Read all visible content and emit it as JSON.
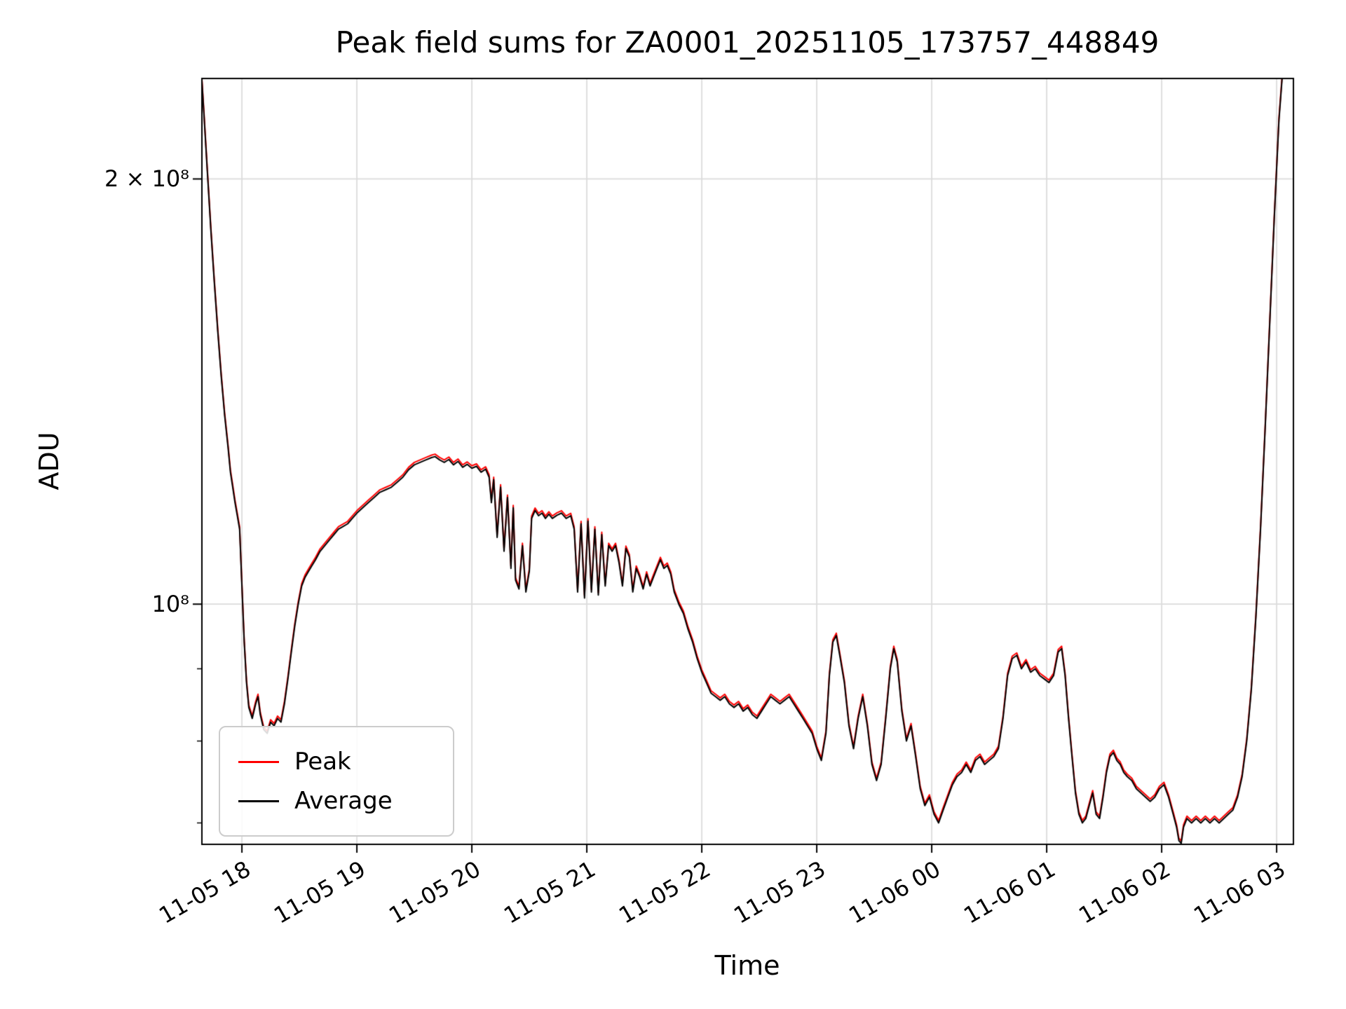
{
  "chart_data": {
    "type": "line",
    "title": "Peak field sums for ZA0001_20251105_173757_448849",
    "xlabel": "Time",
    "ylabel": "ADU",
    "grid": true,
    "legend_position": "lower left",
    "x_axis": {
      "unit": "datetime (MM-DD HH)",
      "tick_hours": [
        18,
        19,
        20,
        21,
        22,
        23,
        24,
        25,
        26,
        27
      ],
      "tick_labels": [
        "11-05 18",
        "11-05 19",
        "11-05 20",
        "11-05 21",
        "11-05 22",
        "11-05 23",
        "11-06 00",
        "11-06 01",
        "11-06 02",
        "11-06 03"
      ],
      "range_hours": [
        17.652,
        27.146
      ]
    },
    "y_axis": {
      "scale": "log",
      "unit": "ADU",
      "ticks": [
        {
          "value": 200000000,
          "label": "2 × 10⁸"
        },
        {
          "value": 100000000,
          "label": "10⁸"
        }
      ],
      "minor_tick_values": [
        70000000,
        80000000,
        90000000
      ],
      "range": [
        67600000,
        235600000
      ]
    },
    "series": [
      {
        "name": "Peak",
        "color": "#ff0000",
        "scale": 1.004
      },
      {
        "name": "Average",
        "color": "#000000",
        "scale": 1.0
      }
    ],
    "value_scale": 10000000,
    "points_note": "points are [hours since 11-05 00:00, Average value in 1e7 ADU]; Peak = Average * series scale",
    "points": [
      [
        17.65,
        23.6
      ],
      [
        17.67,
        22.2
      ],
      [
        17.7,
        20.2
      ],
      [
        17.73,
        18.4
      ],
      [
        17.76,
        16.9
      ],
      [
        17.79,
        15.6
      ],
      [
        17.82,
        14.5
      ],
      [
        17.85,
        13.6
      ],
      [
        17.88,
        12.9
      ],
      [
        17.9,
        12.4
      ],
      [
        17.92,
        12.1
      ],
      [
        17.94,
        11.8
      ],
      [
        17.96,
        11.55
      ],
      [
        17.98,
        11.3
      ],
      [
        18.0,
        10.3
      ],
      [
        18.02,
        9.4
      ],
      [
        18.04,
        8.8
      ],
      [
        18.06,
        8.45
      ],
      [
        18.09,
        8.3
      ],
      [
        18.12,
        8.5
      ],
      [
        18.14,
        8.6
      ],
      [
        18.16,
        8.35
      ],
      [
        18.19,
        8.15
      ],
      [
        18.22,
        8.1
      ],
      [
        18.25,
        8.25
      ],
      [
        18.28,
        8.2
      ],
      [
        18.31,
        8.3
      ],
      [
        18.34,
        8.25
      ],
      [
        18.37,
        8.5
      ],
      [
        18.4,
        8.85
      ],
      [
        18.43,
        9.25
      ],
      [
        18.46,
        9.65
      ],
      [
        18.49,
        10.0
      ],
      [
        18.52,
        10.3
      ],
      [
        18.55,
        10.45
      ],
      [
        18.58,
        10.55
      ],
      [
        18.61,
        10.65
      ],
      [
        18.64,
        10.75
      ],
      [
        18.68,
        10.9
      ],
      [
        18.72,
        11.0
      ],
      [
        18.76,
        11.1
      ],
      [
        18.8,
        11.2
      ],
      [
        18.84,
        11.3
      ],
      [
        18.88,
        11.35
      ],
      [
        18.92,
        11.4
      ],
      [
        18.96,
        11.5
      ],
      [
        19.0,
        11.6
      ],
      [
        19.05,
        11.7
      ],
      [
        19.1,
        11.8
      ],
      [
        19.15,
        11.9
      ],
      [
        19.2,
        12.0
      ],
      [
        19.25,
        12.05
      ],
      [
        19.3,
        12.1
      ],
      [
        19.35,
        12.2
      ],
      [
        19.4,
        12.3
      ],
      [
        19.45,
        12.45
      ],
      [
        19.5,
        12.55
      ],
      [
        19.55,
        12.6
      ],
      [
        19.6,
        12.65
      ],
      [
        19.65,
        12.7
      ],
      [
        19.68,
        12.72
      ],
      [
        19.72,
        12.65
      ],
      [
        19.76,
        12.6
      ],
      [
        19.8,
        12.66
      ],
      [
        19.84,
        12.55
      ],
      [
        19.88,
        12.62
      ],
      [
        19.92,
        12.5
      ],
      [
        19.96,
        12.56
      ],
      [
        20.0,
        12.48
      ],
      [
        20.04,
        12.52
      ],
      [
        20.08,
        12.4
      ],
      [
        20.12,
        12.46
      ],
      [
        20.15,
        12.3
      ],
      [
        20.17,
        11.8
      ],
      [
        20.19,
        12.25
      ],
      [
        20.22,
        11.15
      ],
      [
        20.25,
        12.1
      ],
      [
        20.28,
        10.9
      ],
      [
        20.31,
        11.9
      ],
      [
        20.34,
        10.6
      ],
      [
        20.36,
        11.7
      ],
      [
        20.38,
        10.4
      ],
      [
        20.41,
        10.25
      ],
      [
        20.44,
        11.0
      ],
      [
        20.47,
        10.2
      ],
      [
        20.5,
        10.55
      ],
      [
        20.52,
        11.5
      ],
      [
        20.55,
        11.65
      ],
      [
        20.58,
        11.55
      ],
      [
        20.61,
        11.6
      ],
      [
        20.64,
        11.5
      ],
      [
        20.67,
        11.58
      ],
      [
        20.7,
        11.5
      ],
      [
        20.74,
        11.56
      ],
      [
        20.78,
        11.6
      ],
      [
        20.82,
        11.5
      ],
      [
        20.86,
        11.55
      ],
      [
        20.89,
        11.3
      ],
      [
        20.92,
        10.2
      ],
      [
        20.95,
        11.4
      ],
      [
        20.98,
        10.1
      ],
      [
        21.01,
        11.45
      ],
      [
        21.04,
        10.2
      ],
      [
        21.07,
        11.3
      ],
      [
        21.1,
        10.15
      ],
      [
        21.13,
        11.2
      ],
      [
        21.16,
        10.3
      ],
      [
        21.19,
        11.0
      ],
      [
        21.22,
        10.9
      ],
      [
        21.25,
        11.0
      ],
      [
        21.28,
        10.7
      ],
      [
        21.31,
        10.3
      ],
      [
        21.34,
        10.95
      ],
      [
        21.37,
        10.8
      ],
      [
        21.4,
        10.2
      ],
      [
        21.43,
        10.6
      ],
      [
        21.46,
        10.45
      ],
      [
        21.49,
        10.25
      ],
      [
        21.52,
        10.5
      ],
      [
        21.55,
        10.3
      ],
      [
        21.58,
        10.45
      ],
      [
        21.61,
        10.6
      ],
      [
        21.64,
        10.75
      ],
      [
        21.67,
        10.6
      ],
      [
        21.7,
        10.65
      ],
      [
        21.73,
        10.5
      ],
      [
        21.76,
        10.2
      ],
      [
        21.8,
        10.0
      ],
      [
        21.84,
        9.85
      ],
      [
        21.88,
        9.6
      ],
      [
        21.92,
        9.4
      ],
      [
        21.96,
        9.15
      ],
      [
        22.0,
        8.95
      ],
      [
        22.04,
        8.8
      ],
      [
        22.08,
        8.65
      ],
      [
        22.12,
        8.6
      ],
      [
        22.16,
        8.55
      ],
      [
        22.2,
        8.6
      ],
      [
        22.24,
        8.5
      ],
      [
        22.28,
        8.45
      ],
      [
        22.32,
        8.5
      ],
      [
        22.36,
        8.4
      ],
      [
        22.4,
        8.45
      ],
      [
        22.44,
        8.35
      ],
      [
        22.48,
        8.3
      ],
      [
        22.52,
        8.4
      ],
      [
        22.56,
        8.5
      ],
      [
        22.6,
        8.6
      ],
      [
        22.64,
        8.55
      ],
      [
        22.68,
        8.5
      ],
      [
        22.72,
        8.55
      ],
      [
        22.76,
        8.6
      ],
      [
        22.8,
        8.5
      ],
      [
        22.84,
        8.4
      ],
      [
        22.88,
        8.3
      ],
      [
        22.92,
        8.2
      ],
      [
        22.96,
        8.1
      ],
      [
        23.0,
        7.9
      ],
      [
        23.04,
        7.75
      ],
      [
        23.08,
        8.1
      ],
      [
        23.11,
        8.9
      ],
      [
        23.14,
        9.4
      ],
      [
        23.17,
        9.5
      ],
      [
        23.2,
        9.2
      ],
      [
        23.24,
        8.8
      ],
      [
        23.28,
        8.2
      ],
      [
        23.32,
        7.9
      ],
      [
        23.36,
        8.3
      ],
      [
        23.4,
        8.6
      ],
      [
        23.44,
        8.2
      ],
      [
        23.48,
        7.7
      ],
      [
        23.52,
        7.5
      ],
      [
        23.56,
        7.7
      ],
      [
        23.6,
        8.3
      ],
      [
        23.64,
        9.0
      ],
      [
        23.67,
        9.3
      ],
      [
        23.7,
        9.1
      ],
      [
        23.74,
        8.4
      ],
      [
        23.78,
        8.0
      ],
      [
        23.82,
        8.2
      ],
      [
        23.86,
        7.8
      ],
      [
        23.9,
        7.4
      ],
      [
        23.94,
        7.2
      ],
      [
        23.98,
        7.3
      ],
      [
        24.02,
        7.1
      ],
      [
        24.06,
        7.0
      ],
      [
        24.1,
        7.15
      ],
      [
        24.14,
        7.3
      ],
      [
        24.18,
        7.45
      ],
      [
        24.22,
        7.55
      ],
      [
        24.26,
        7.6
      ],
      [
        24.3,
        7.7
      ],
      [
        24.34,
        7.6
      ],
      [
        24.38,
        7.75
      ],
      [
        24.42,
        7.8
      ],
      [
        24.46,
        7.7
      ],
      [
        24.5,
        7.75
      ],
      [
        24.54,
        7.8
      ],
      [
        24.58,
        7.9
      ],
      [
        24.62,
        8.3
      ],
      [
        24.66,
        8.9
      ],
      [
        24.7,
        9.15
      ],
      [
        24.74,
        9.2
      ],
      [
        24.78,
        9.0
      ],
      [
        24.82,
        9.1
      ],
      [
        24.86,
        8.95
      ],
      [
        24.9,
        9.0
      ],
      [
        24.94,
        8.9
      ],
      [
        24.98,
        8.85
      ],
      [
        25.02,
        8.8
      ],
      [
        25.06,
        8.9
      ],
      [
        25.1,
        9.25
      ],
      [
        25.13,
        9.3
      ],
      [
        25.16,
        8.9
      ],
      [
        25.19,
        8.3
      ],
      [
        25.22,
        7.8
      ],
      [
        25.25,
        7.35
      ],
      [
        25.28,
        7.1
      ],
      [
        25.31,
        7.0
      ],
      [
        25.34,
        7.05
      ],
      [
        25.37,
        7.2
      ],
      [
        25.4,
        7.35
      ],
      [
        25.43,
        7.1
      ],
      [
        25.46,
        7.05
      ],
      [
        25.49,
        7.3
      ],
      [
        25.52,
        7.6
      ],
      [
        25.55,
        7.8
      ],
      [
        25.58,
        7.85
      ],
      [
        25.61,
        7.75
      ],
      [
        25.64,
        7.7
      ],
      [
        25.67,
        7.6
      ],
      [
        25.7,
        7.55
      ],
      [
        25.74,
        7.5
      ],
      [
        25.78,
        7.4
      ],
      [
        25.82,
        7.35
      ],
      [
        25.86,
        7.3
      ],
      [
        25.9,
        7.25
      ],
      [
        25.94,
        7.3
      ],
      [
        25.98,
        7.4
      ],
      [
        26.02,
        7.45
      ],
      [
        26.06,
        7.3
      ],
      [
        26.1,
        7.1
      ],
      [
        26.13,
        6.95
      ],
      [
        26.15,
        6.8
      ],
      [
        26.17,
        6.77
      ],
      [
        26.19,
        6.95
      ],
      [
        26.22,
        7.05
      ],
      [
        26.26,
        7.0
      ],
      [
        26.3,
        7.05
      ],
      [
        26.34,
        7.0
      ],
      [
        26.38,
        7.05
      ],
      [
        26.42,
        7.0
      ],
      [
        26.46,
        7.05
      ],
      [
        26.5,
        7.0
      ],
      [
        26.54,
        7.05
      ],
      [
        26.58,
        7.1
      ],
      [
        26.62,
        7.15
      ],
      [
        26.66,
        7.3
      ],
      [
        26.7,
        7.55
      ],
      [
        26.74,
        8.0
      ],
      [
        26.78,
        8.7
      ],
      [
        26.82,
        9.8
      ],
      [
        26.86,
        11.3
      ],
      [
        26.9,
        13.3
      ],
      [
        26.94,
        15.8
      ],
      [
        26.98,
        18.8
      ],
      [
        27.02,
        22.0
      ],
      [
        27.05,
        23.7
      ]
    ]
  },
  "style": {
    "grid_color": "#dcdcdc",
    "spine_color": "#000000",
    "background": "#ffffff",
    "legend_border": "#cccccc"
  }
}
